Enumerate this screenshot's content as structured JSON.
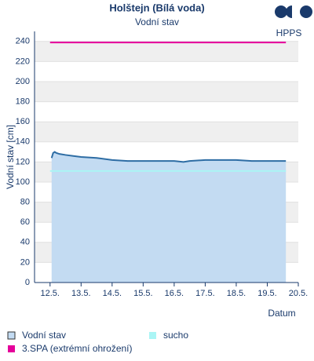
{
  "logo": "HPPS",
  "chart_data": {
    "type": "line",
    "title": "Holštejn (Bílá voda)",
    "subtitle": "Vodní stav",
    "y_label": "Vodní stav [cm]",
    "x_label": "Datum",
    "xlim": [
      12,
      20.5
    ],
    "ylim": [
      0,
      250
    ],
    "xticks": [
      {
        "value": 12.5,
        "label": "12.5."
      },
      {
        "value": 13.5,
        "label": "13.5."
      },
      {
        "value": 14.5,
        "label": "14.5."
      },
      {
        "value": 15.5,
        "label": "15.5."
      },
      {
        "value": 16.5,
        "label": "16.5."
      },
      {
        "value": 17.5,
        "label": "17.5."
      },
      {
        "value": 18.5,
        "label": "18.5."
      },
      {
        "value": 19.5,
        "label": "19.5."
      },
      {
        "value": 20.5,
        "label": "20.5."
      }
    ],
    "yticks": [
      0,
      20,
      40,
      60,
      80,
      100,
      120,
      140,
      160,
      180,
      200,
      220,
      240
    ],
    "grid": true,
    "series": [
      {
        "name": "Vodní stav",
        "color": "#2e6da4",
        "fill": "#c3dbf2",
        "x": [
          12.55,
          12.6,
          12.65,
          12.7,
          12.8,
          13.0,
          13.25,
          13.5,
          14.0,
          14.5,
          15.0,
          15.5,
          16.0,
          16.5,
          16.8,
          17.0,
          17.5,
          18.0,
          18.5,
          19.0,
          19.5,
          20.1
        ],
        "values": [
          124,
          129,
          130,
          129,
          128,
          127,
          126,
          125,
          124,
          122,
          121,
          121,
          121,
          121,
          120,
          121,
          122,
          122,
          122,
          121,
          121,
          121
        ]
      },
      {
        "name": "sucho",
        "color": "#aaf5f5",
        "x": [
          12.5,
          20.1
        ],
        "values": [
          111,
          111
        ]
      },
      {
        "name": "3.SPA (extrémní ohrožení)",
        "color": "#e5009a",
        "x": [
          12.5,
          20.1
        ],
        "values": [
          239,
          239
        ]
      }
    ]
  }
}
